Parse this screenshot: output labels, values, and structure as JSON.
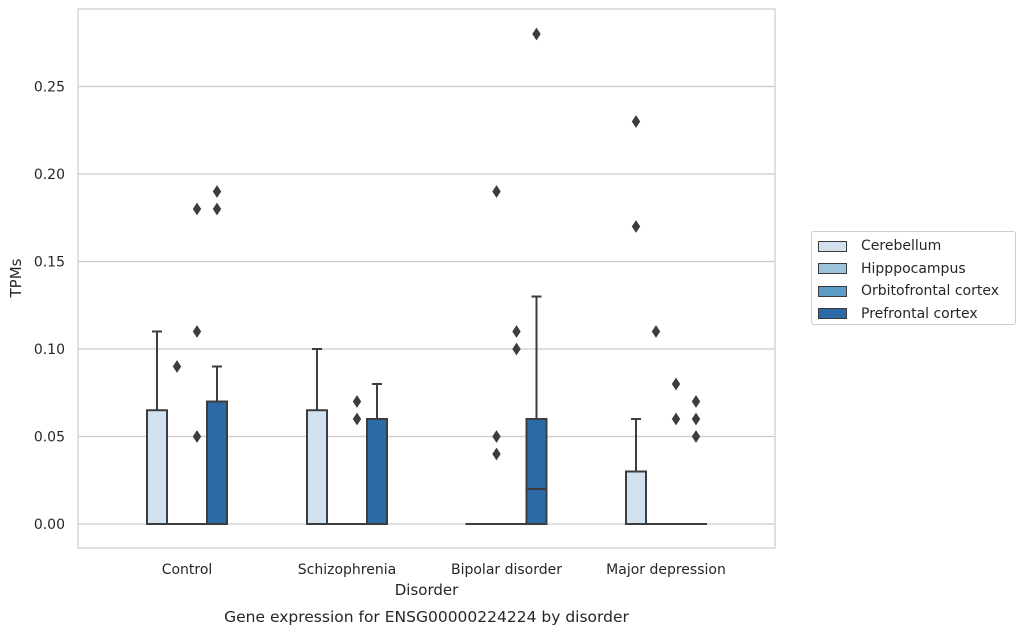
{
  "chart_data": {
    "type": "box",
    "title": "Gene expression for ENSG00000224224 by disorder",
    "xlabel": "Disorder",
    "ylabel": "TPMs",
    "categories": [
      "Control",
      "Schizophrenia",
      "Bipolar disorder",
      "Major depression"
    ],
    "ylim": [
      -0.014,
      0.295
    ],
    "yticks": [
      0.0,
      0.05,
      0.1,
      0.15,
      0.2,
      0.25
    ],
    "ytick_labels": [
      "0.00",
      "0.05",
      "0.10",
      "0.15",
      "0.20",
      "0.25"
    ],
    "grid": true,
    "legend_position": "right",
    "series": [
      {
        "name": "Cerebellum",
        "color": "#d2e1f0",
        "boxes": [
          {
            "q1": 0.0,
            "median": 0.0,
            "q3": 0.065,
            "whisker_low": 0.0,
            "whisker_high": 0.11,
            "outliers": []
          },
          {
            "q1": 0.0,
            "median": 0.0,
            "q3": 0.065,
            "whisker_low": 0.0,
            "whisker_high": 0.1,
            "outliers": []
          },
          {
            "q1": 0.0,
            "median": 0.0,
            "q3": 0.0,
            "whisker_low": 0.0,
            "whisker_high": 0.0,
            "outliers": []
          },
          {
            "q1": 0.0,
            "median": 0.0,
            "q3": 0.03,
            "whisker_low": 0.0,
            "whisker_high": 0.06,
            "outliers": [
              0.17,
              0.23
            ]
          }
        ]
      },
      {
        "name": "Hipppocampus",
        "color": "#9cc2dc",
        "boxes": [
          {
            "q1": 0.0,
            "median": 0.0,
            "q3": 0.0,
            "whisker_low": 0.0,
            "whisker_high": 0.0,
            "outliers": [
              0.09
            ]
          },
          {
            "q1": 0.0,
            "median": 0.0,
            "q3": 0.0,
            "whisker_low": 0.0,
            "whisker_high": 0.0,
            "outliers": []
          },
          {
            "q1": 0.0,
            "median": 0.0,
            "q3": 0.0,
            "whisker_low": 0.0,
            "whisker_high": 0.0,
            "outliers": [
              0.04,
              0.05,
              0.19
            ]
          },
          {
            "q1": 0.0,
            "median": 0.0,
            "q3": 0.0,
            "whisker_low": 0.0,
            "whisker_high": 0.0,
            "outliers": [
              0.11
            ]
          }
        ]
      },
      {
        "name": "Orbitofrontal cortex",
        "color": "#5a9bc7",
        "boxes": [
          {
            "q1": 0.0,
            "median": 0.0,
            "q3": 0.0,
            "whisker_low": 0.0,
            "whisker_high": 0.0,
            "outliers": [
              0.05,
              0.11,
              0.18
            ]
          },
          {
            "q1": 0.0,
            "median": 0.0,
            "q3": 0.0,
            "whisker_low": 0.0,
            "whisker_high": 0.0,
            "outliers": [
              0.06,
              0.07
            ]
          },
          {
            "q1": 0.0,
            "median": 0.0,
            "q3": 0.0,
            "whisker_low": 0.0,
            "whisker_high": 0.0,
            "outliers": [
              0.1,
              0.11
            ]
          },
          {
            "q1": 0.0,
            "median": 0.0,
            "q3": 0.0,
            "whisker_low": 0.0,
            "whisker_high": 0.0,
            "outliers": [
              0.06,
              0.08
            ]
          }
        ]
      },
      {
        "name": "Prefrontal cortex",
        "color": "#2b6aa6",
        "boxes": [
          {
            "q1": 0.0,
            "median": 0.0,
            "q3": 0.07,
            "whisker_low": 0.0,
            "whisker_high": 0.09,
            "outliers": [
              0.18,
              0.19
            ]
          },
          {
            "q1": 0.0,
            "median": 0.0,
            "q3": 0.06,
            "whisker_low": 0.0,
            "whisker_high": 0.08,
            "outliers": []
          },
          {
            "q1": 0.0,
            "median": 0.02,
            "q3": 0.06,
            "whisker_low": 0.0,
            "whisker_high": 0.13,
            "outliers": [
              0.28
            ]
          },
          {
            "q1": 0.0,
            "median": 0.0,
            "q3": 0.0,
            "whisker_low": 0.0,
            "whisker_high": 0.0,
            "outliers": [
              0.05,
              0.06,
              0.07
            ]
          }
        ]
      }
    ]
  }
}
